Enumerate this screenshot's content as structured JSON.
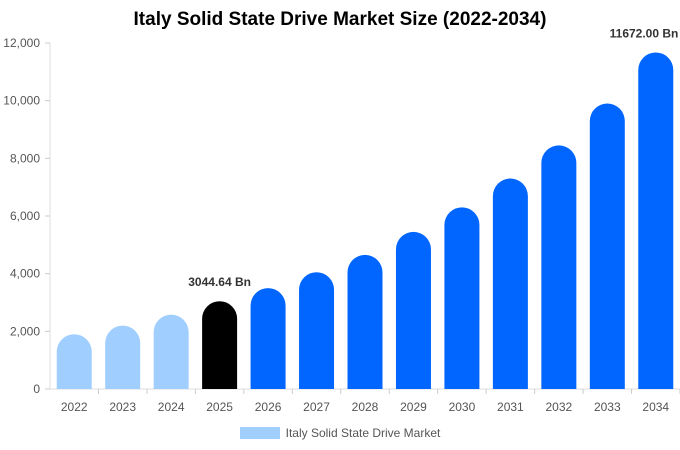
{
  "chart_data": {
    "type": "bar",
    "title": "Italy Solid State Drive Market Size (2022-2034)",
    "xlabel": "",
    "ylabel": "",
    "categories": [
      "2022",
      "2023",
      "2024",
      "2025",
      "2026",
      "2027",
      "2028",
      "2029",
      "2030",
      "2031",
      "2032",
      "2033",
      "2034"
    ],
    "series": [
      {
        "name": "Italy Solid State Drive Market",
        "values": [
          1900,
          2200,
          2580,
          3044.64,
          3500,
          4050,
          4650,
          5450,
          6300,
          7300,
          8450,
          9900,
          11672.0
        ]
      }
    ],
    "ylim": [
      0,
      12000
    ],
    "yticks": [
      "0",
      "2,000",
      "4,000",
      "6,000",
      "8,000",
      "10,000",
      "12,000"
    ],
    "ytick_values": [
      0,
      2000,
      4000,
      6000,
      8000,
      10000,
      12000
    ],
    "annotations": [
      {
        "category": "2025",
        "text": "3044.64 Bn"
      },
      {
        "category": "2034",
        "text": "11672.00 Bn"
      }
    ],
    "colors": {
      "historical": "#a0cfff",
      "base_year": "#000000",
      "forecast": "#0066ff"
    },
    "bar_color_groups": [
      "historical",
      "historical",
      "historical",
      "base_year",
      "forecast",
      "forecast",
      "forecast",
      "forecast",
      "forecast",
      "forecast",
      "forecast",
      "forecast",
      "forecast"
    ],
    "grid": false,
    "legend_position": "bottom"
  }
}
